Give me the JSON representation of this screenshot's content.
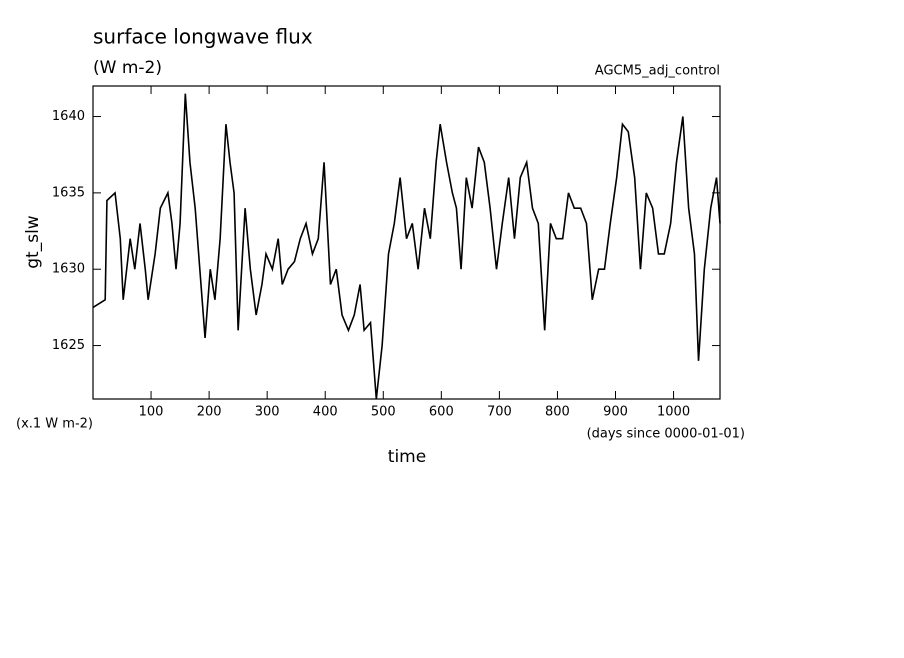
{
  "chart_data": {
    "type": "line",
    "title": "surface longwave flux",
    "subtitle": "(W m-2)",
    "annotation": "AGCM5_adj_control",
    "y_label": "gt_slw",
    "y_unit": "(x.1 W m-2)",
    "x_label": "time",
    "x_unit": "(days since 0000-01-01)",
    "color": "#000000",
    "x": [
      0,
      21,
      24,
      38,
      47,
      52,
      64,
      72,
      81,
      90,
      95,
      107,
      116,
      129,
      136,
      143,
      150,
      159,
      167,
      176,
      184,
      193,
      202,
      210,
      219,
      229,
      236,
      243,
      250,
      262,
      271,
      281,
      291,
      298,
      309,
      319,
      326,
      336,
      347,
      357,
      367,
      378,
      388,
      398,
      409,
      419,
      429,
      440,
      450,
      460,
      467,
      478,
      488,
      498,
      509,
      519,
      529,
      540,
      550,
      560,
      571,
      581,
      591,
      598,
      609,
      619,
      626,
      634,
      643,
      653,
      664,
      674,
      684,
      695,
      705,
      716,
      726,
      736,
      747,
      757,
      767,
      778,
      788,
      798,
      809,
      819,
      829,
      840,
      850,
      860,
      871,
      881,
      891,
      902,
      912,
      922,
      933,
      943,
      953,
      964,
      974,
      984,
      995,
      1005,
      1016,
      1026,
      1036,
      1043,
      1053,
      1064,
      1074,
      1080
    ],
    "values": [
      1627.5,
      1628,
      1634.5,
      1635,
      1632,
      1628,
      1632,
      1630,
      1633,
      1630,
      1628,
      1631,
      1634,
      1635,
      1633,
      1630,
      1633,
      1641.5,
      1637,
      1634,
      1630,
      1625.5,
      1630,
      1628,
      1632,
      1639.5,
      1637,
      1635,
      1626,
      1634,
      1630,
      1627,
      1629,
      1631,
      1630,
      1632,
      1629,
      1630,
      1630.5,
      1632,
      1633,
      1631,
      1632,
      1637,
      1629,
      1630,
      1627,
      1626,
      1627,
      1629,
      1626,
      1626.5,
      1621.5,
      1625,
      1631,
      1633,
      1636,
      1632,
      1633,
      1630,
      1634,
      1632,
      1637,
      1639.5,
      1637,
      1635,
      1634,
      1630,
      1636,
      1634,
      1638,
      1637,
      1634,
      1630,
      1633,
      1636,
      1632,
      1636,
      1637,
      1634,
      1633,
      1626,
      1633,
      1632,
      1632,
      1635,
      1634,
      1634,
      1633,
      1628,
      1630,
      1630,
      1633,
      1636,
      1639.5,
      1639,
      1636,
      1630,
      1635,
      1634,
      1631,
      1631,
      1633,
      1637,
      1640,
      1634,
      1631,
      1624,
      1630,
      1634,
      1636,
      1633
    ],
    "xlim": [
      0,
      1080
    ],
    "ylim": [
      1621.5,
      1642
    ],
    "xticks": [
      100,
      200,
      300,
      400,
      500,
      600,
      700,
      800,
      900,
      1000
    ],
    "yticks": [
      1625,
      1630,
      1635,
      1640
    ],
    "grid": false
  }
}
